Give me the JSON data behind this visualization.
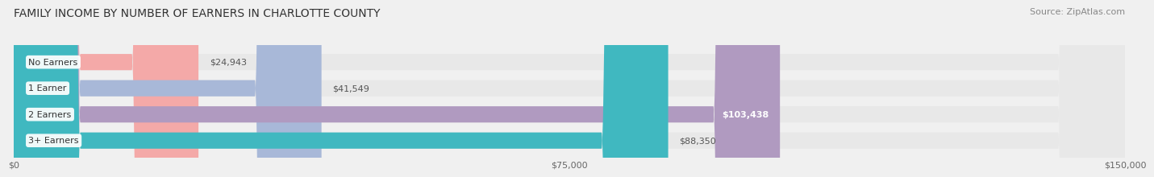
{
  "title": "FAMILY INCOME BY NUMBER OF EARNERS IN CHARLOTTE COUNTY",
  "source": "Source: ZipAtlas.com",
  "categories": [
    "No Earners",
    "1 Earner",
    "2 Earners",
    "3+ Earners"
  ],
  "values": [
    24943,
    41549,
    103438,
    88350
  ],
  "bar_colors": [
    "#f4a9a8",
    "#a8b8d8",
    "#b09ac0",
    "#40b8c0"
  ],
  "label_colors": [
    "#888888",
    "#888888",
    "#ffffff",
    "#333333"
  ],
  "x_max": 150000,
  "x_ticks": [
    0,
    75000,
    150000
  ],
  "x_tick_labels": [
    "$0",
    "$75,000",
    "$150,000"
  ],
  "background_color": "#f0f0f0",
  "bar_bg_color": "#e8e8e8",
  "title_fontsize": 10,
  "source_fontsize": 8,
  "bar_label_fontsize": 8,
  "category_fontsize": 8
}
